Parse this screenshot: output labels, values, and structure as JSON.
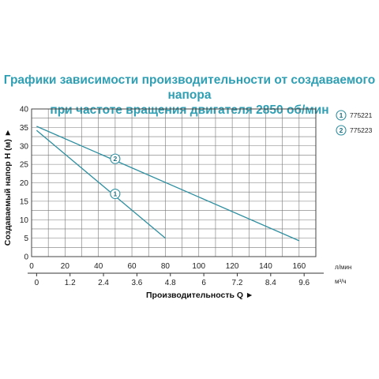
{
  "title": {
    "line1": "Графики зависимости производительности от создаваемого напора",
    "line2": "при частоте вращения двигателя 2850 об/мин"
  },
  "colors": {
    "title": "#2f9fb4",
    "series": "#2f8fa0",
    "grid": "#777777",
    "frame": "#444444"
  },
  "chart_data": {
    "type": "line",
    "xlabel": "Производительность Q ►",
    "ylabel": "Создаваемый напор H (м) ►",
    "x_unit_primary": "л/мин",
    "x_unit_secondary": "м³/ч",
    "xlim": [
      0,
      170
    ],
    "ylim": [
      0,
      40
    ],
    "x_ticks": [
      0,
      20,
      40,
      60,
      80,
      100,
      120,
      140,
      160
    ],
    "x_tick_labels": [
      "0",
      "20",
      "40",
      "60",
      "80",
      "100",
      "120",
      "140",
      "160"
    ],
    "x_secondary_ticks": [
      3,
      23,
      43,
      63,
      83,
      103,
      123,
      143,
      163
    ],
    "x_secondary_tick_labels": [
      "0",
      "1.2",
      "2.4",
      "3.6",
      "4.8",
      "6",
      "7.2",
      "8.4",
      "9.6"
    ],
    "y_ticks": [
      0,
      5,
      10,
      15,
      20,
      25,
      30,
      35,
      40
    ],
    "y_tick_labels": [
      "0",
      "5",
      "10",
      "15",
      "20",
      "25",
      "30",
      "35",
      "40"
    ],
    "grid": true,
    "legend_position": "top-right",
    "series": [
      {
        "marker": "1",
        "name": "775221",
        "x": [
          3,
          80
        ],
        "y": [
          34.2,
          5
        ],
        "label_at": {
          "x": 50,
          "y": 17
        }
      },
      {
        "marker": "2",
        "name": "775223",
        "x": [
          3,
          160
        ],
        "y": [
          35.3,
          4.3
        ],
        "label_at": {
          "x": 50,
          "y": 26.5
        }
      }
    ]
  }
}
